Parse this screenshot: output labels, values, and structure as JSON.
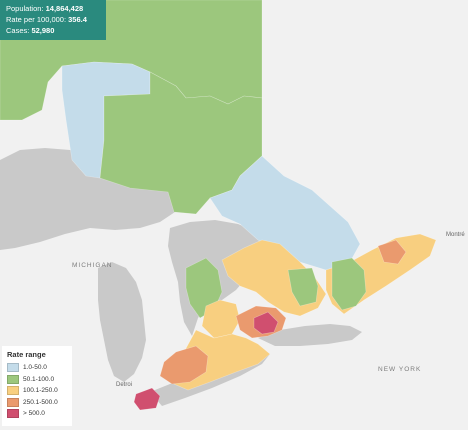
{
  "stats": {
    "population_label": "Population:",
    "population_value": "14,864,428",
    "rate_label": "Rate per 100,000:",
    "rate_value": "356.4",
    "cases_label": "Cases:",
    "cases_value": "52,980"
  },
  "legend": {
    "title": "Rate range",
    "items": [
      {
        "label": "1.0-50.0",
        "color": "#c4dcea"
      },
      {
        "label": "50.1-100.0",
        "color": "#9cc77d"
      },
      {
        "label": "100.1-250.0",
        "color": "#f8cf80"
      },
      {
        "label": "250.1-500.0",
        "color": "#ea9a6e"
      },
      {
        "label": "> 500.0",
        "color": "#d04f6f"
      }
    ]
  },
  "map_labels": {
    "michigan": "MICHIGAN",
    "new_york": "NEW YORK",
    "montreal": "Montré",
    "detroit": "Detroi"
  },
  "colors": {
    "land": "#f1f1f1",
    "water": "#c9c9c9",
    "stats_bg": "#2a8a7e"
  }
}
